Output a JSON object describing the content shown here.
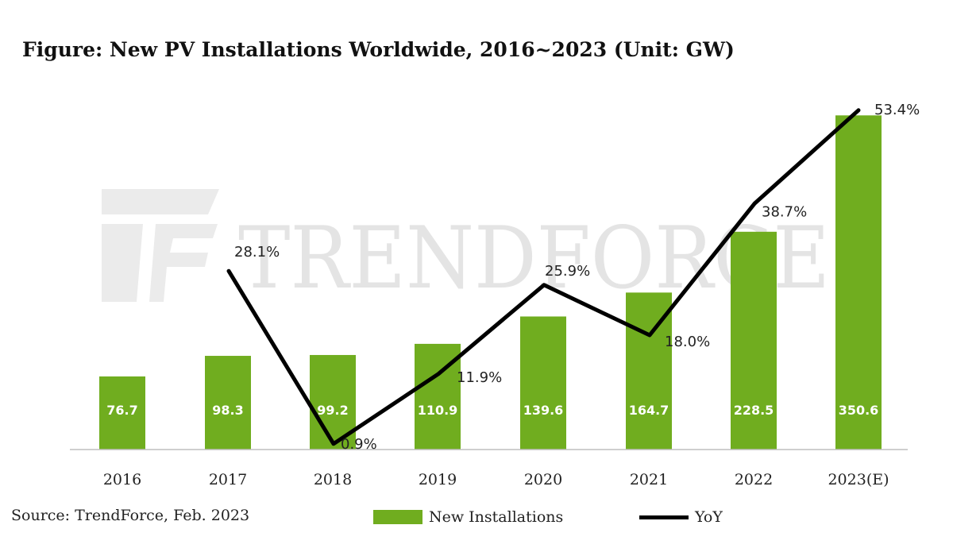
{
  "title": "Figure: New PV Installations Worldwide, 2016~2023 (Unit: GW)",
  "source": "Source: TrendForce, Feb. 2023",
  "watermark": "TRENDFORCE",
  "legend": {
    "bar_label": "New Installations",
    "line_label": "YoY"
  },
  "colors": {
    "bar": "#70AD1F",
    "line": "#000000",
    "axis": "#bfbfbf"
  },
  "chart_data": {
    "type": "bar",
    "categories": [
      "2016",
      "2017",
      "2018",
      "2019",
      "2020",
      "2021",
      "2022",
      "2023(E)"
    ],
    "series": [
      {
        "name": "New Installations",
        "type": "bar",
        "values": [
          76.7,
          98.3,
          99.2,
          110.9,
          139.6,
          164.7,
          228.5,
          350.6
        ],
        "labels": [
          "76.7",
          "98.3",
          "99.2",
          "110.9",
          "139.6",
          "164.7",
          "228.5",
          "350.6"
        ]
      },
      {
        "name": "YoY",
        "type": "line",
        "values": [
          null,
          28.1,
          0.9,
          11.9,
          25.9,
          18.0,
          38.7,
          53.4
        ],
        "labels": [
          null,
          "28.1%",
          "0.9%",
          "11.9%",
          "25.9%",
          "18.0%",
          "38.7%",
          "53.4%"
        ]
      }
    ],
    "ylim_bar": [
      0,
      380
    ],
    "ylim_line": [
      0,
      57
    ],
    "grid": false,
    "legend_position": "bottom"
  }
}
